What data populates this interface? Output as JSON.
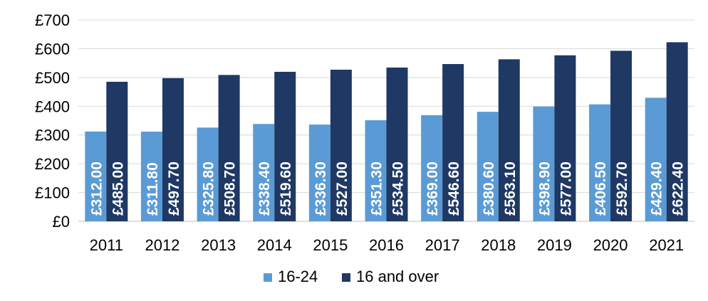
{
  "chart_data": {
    "type": "bar",
    "categories": [
      "2011",
      "2012",
      "2013",
      "2014",
      "2015",
      "2016",
      "2017",
      "2018",
      "2019",
      "2020",
      "2021"
    ],
    "series": [
      {
        "name": "16-24",
        "color": "#5b9bd5",
        "values": [
          312.0,
          311.8,
          325.8,
          338.4,
          336.3,
          351.3,
          369.0,
          380.6,
          398.9,
          406.5,
          429.4
        ],
        "labels": [
          "£312.00",
          "£311.80",
          "£325.80",
          "£338.40",
          "£336.30",
          "£351.30",
          "£369.00",
          "£380.60",
          "£398.90",
          "£406.50",
          "£429.40"
        ]
      },
      {
        "name": "16 and over",
        "color": "#1f3864",
        "values": [
          485.0,
          497.7,
          508.7,
          519.6,
          527.0,
          534.5,
          546.6,
          563.1,
          577.0,
          592.7,
          622.4
        ],
        "labels": [
          "£485.00",
          "£497.70",
          "£508.70",
          "£519.60",
          "£527.00",
          "£534.50",
          "£546.60",
          "£563.10",
          "£577.00",
          "£592.70",
          "£622.40"
        ]
      }
    ],
    "y_ticks": [
      0,
      100,
      200,
      300,
      400,
      500,
      600,
      700
    ],
    "y_tick_labels": [
      "£0",
      "£100",
      "£200",
      "£300",
      "£400",
      "£500",
      "£600",
      "£700"
    ],
    "ylim": [
      0,
      700
    ],
    "grid": true,
    "legend_position": "bottom",
    "title": "",
    "xlabel": "",
    "ylabel": ""
  }
}
